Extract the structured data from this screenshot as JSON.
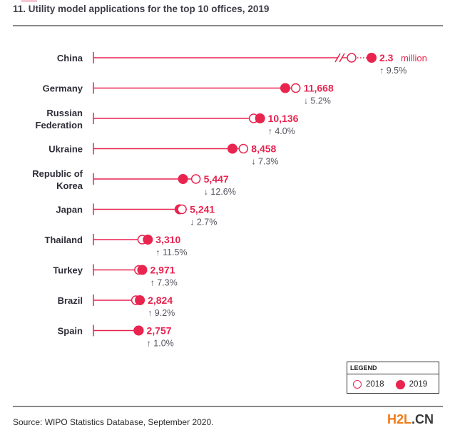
{
  "chart_data": {
    "type": "dumbbell",
    "title": "11. Utility model applications for the top 10 offices, 2019",
    "source": "Source: WIPO Statistics Database, September 2020.",
    "colors": {
      "accent": "#e8244f",
      "text": "#2d2d38",
      "change": "#555560"
    },
    "legend": {
      "title": "LEGEND",
      "items": [
        {
          "label": "2018",
          "style": "open"
        },
        {
          "label": "2019",
          "style": "filled"
        }
      ],
      "placement": "bottom-right"
    },
    "series_names": [
      "2018",
      "2019"
    ],
    "rows": [
      {
        "office": [
          "China"
        ],
        "value_2018": 2069000,
        "value_2019": 2300000,
        "value_label": "2.3",
        "unit": "million",
        "change": "↑ 9.5%",
        "axis_break": true
      },
      {
        "office": [
          "Germany"
        ],
        "value_2018": 12308,
        "value_2019": 11668,
        "value_label": "11,668",
        "change": "↓ 5.2%"
      },
      {
        "office": [
          "Russian",
          "Federation"
        ],
        "value_2018": 9746,
        "value_2019": 10136,
        "value_label": "10,136",
        "change": "↑ 4.0%"
      },
      {
        "office": [
          "Ukraine"
        ],
        "value_2018": 9124,
        "value_2019": 8458,
        "value_label": "8,458",
        "change": "↓ 7.3%"
      },
      {
        "office": [
          "Republic of",
          "Korea"
        ],
        "value_2018": 6232,
        "value_2019": 5447,
        "value_label": "5,447",
        "change": "↓ 12.6%"
      },
      {
        "office": [
          "Japan"
        ],
        "value_2018": 5386,
        "value_2019": 5241,
        "value_label": "5,241",
        "change": "↓ 2.7%"
      },
      {
        "office": [
          "Thailand"
        ],
        "value_2018": 2969,
        "value_2019": 3310,
        "value_label": "3,310",
        "change": "↑ 11.5%"
      },
      {
        "office": [
          "Turkey"
        ],
        "value_2018": 2769,
        "value_2019": 2971,
        "value_label": "2,971",
        "change": "↑ 7.3%"
      },
      {
        "office": [
          "Brazil"
        ],
        "value_2018": 2586,
        "value_2019": 2824,
        "value_label": "2,824",
        "change": "↑ 9.2%"
      },
      {
        "office": [
          "Spain"
        ],
        "value_2018": 2730,
        "value_2019": 2757,
        "value_label": "2,757",
        "change": "↑ 1.0%"
      }
    ]
  },
  "watermark": {
    "part_a": "H2L",
    "part_b": ".CN"
  }
}
